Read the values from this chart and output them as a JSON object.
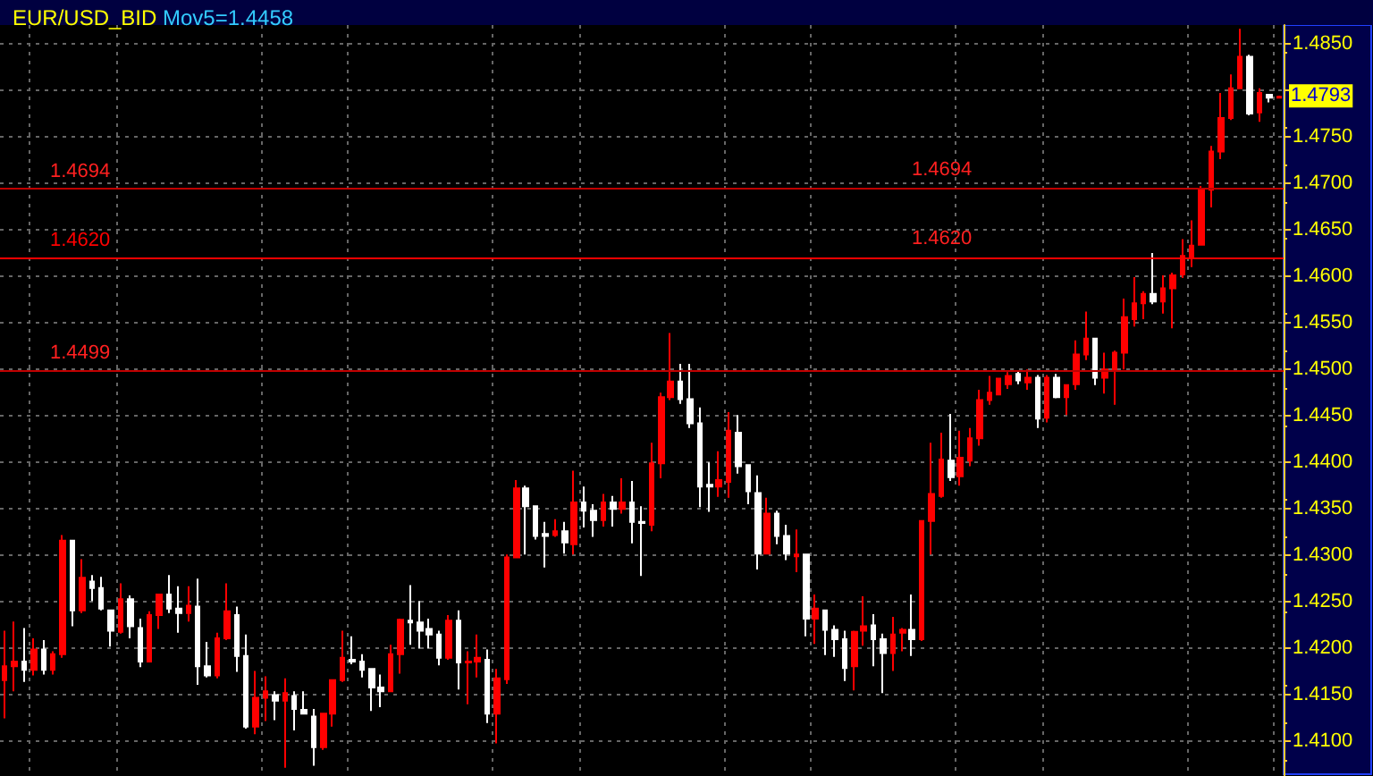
{
  "chart_data": {
    "type": "candlestick",
    "title": "EUR/USD_BID",
    "subtitle": "Mov5=1.4458",
    "categories": [
      null,
      null,
      null,
      null,
      null,
      null,
      null,
      null,
      null,
      null,
      null,
      null,
      null,
      null,
      null,
      null,
      null,
      null,
      null,
      null,
      null,
      null,
      null,
      null,
      null,
      null,
      null,
      null,
      null,
      null,
      null,
      null,
      null,
      null,
      null,
      null,
      null,
      null,
      null,
      null,
      null,
      null,
      null,
      null,
      null,
      null,
      null,
      null,
      null,
      null,
      null,
      null,
      null,
      null,
      null,
      null,
      null,
      null,
      null,
      null,
      null,
      null,
      null,
      null,
      null,
      null,
      null,
      null,
      null,
      null,
      null,
      null,
      null,
      null,
      null,
      null,
      null,
      null,
      null,
      null,
      null,
      null,
      null,
      null,
      null,
      null,
      null,
      null,
      null,
      null,
      null,
      null,
      null,
      null,
      null,
      null,
      null,
      null,
      null,
      null,
      null,
      null,
      null,
      null,
      null,
      null,
      null,
      null,
      null,
      null,
      null,
      null,
      null,
      null,
      null,
      null,
      null,
      null,
      null,
      null,
      null,
      null,
      null,
      null,
      null,
      null,
      null,
      null,
      null,
      null,
      null,
      null,
      null
    ],
    "ohlc": [
      [
        1.4166,
        1.4219,
        1.4125,
        1.4181
      ],
      [
        1.4181,
        1.4229,
        1.4154,
        1.4186
      ],
      [
        1.4186,
        1.4222,
        1.4164,
        1.4177
      ],
      [
        1.4177,
        1.4211,
        1.4171,
        1.4199
      ],
      [
        1.4199,
        1.4209,
        1.4172,
        1.4177
      ],
      [
        1.4177,
        1.4197,
        1.4172,
        1.4194
      ],
      [
        1.4194,
        1.4322,
        1.419,
        1.4316
      ],
      [
        1.4316,
        1.4316,
        1.4224,
        1.4241
      ],
      [
        1.4241,
        1.4296,
        1.4238,
        1.4276
      ],
      [
        1.4272,
        1.4279,
        1.4251,
        1.4265
      ],
      [
        1.4265,
        1.4277,
        1.4241,
        1.4243
      ],
      [
        1.4241,
        1.4241,
        1.4202,
        1.4219
      ],
      [
        1.4218,
        1.427,
        1.4216,
        1.4253
      ],
      [
        1.4253,
        1.4257,
        1.4211,
        1.4224
      ],
      [
        1.4222,
        1.4232,
        1.418,
        1.4186
      ],
      [
        1.4186,
        1.424,
        1.4185,
        1.4236
      ],
      [
        1.4236,
        1.4258,
        1.4221,
        1.4258
      ],
      [
        1.4258,
        1.4279,
        1.4238,
        1.4243
      ],
      [
        1.4243,
        1.4267,
        1.4217,
        1.4238
      ],
      [
        1.4238,
        1.4267,
        1.4229,
        1.4246
      ],
      [
        1.4245,
        1.4275,
        1.4161,
        1.4181
      ],
      [
        1.4181,
        1.4207,
        1.4169,
        1.4171
      ],
      [
        1.4171,
        1.4217,
        1.4168,
        1.4211
      ],
      [
        1.4211,
        1.427,
        1.4209,
        1.424
      ],
      [
        1.4236,
        1.4245,
        1.4175,
        1.4192
      ],
      [
        1.4192,
        1.4215,
        1.4114,
        1.4116
      ],
      [
        1.4116,
        1.4176,
        1.4108,
        1.4147
      ],
      [
        1.4147,
        1.417,
        1.4122,
        1.4154
      ],
      [
        1.415,
        1.4154,
        1.4123,
        1.4144
      ],
      [
        1.4144,
        1.4168,
        1.4072,
        1.4152
      ],
      [
        1.4149,
        1.4154,
        1.4112,
        1.4135
      ],
      [
        1.4134,
        1.4154,
        1.4129,
        1.413
      ],
      [
        1.4127,
        1.4135,
        1.4074,
        1.4094
      ],
      [
        1.4094,
        1.4131,
        1.4091,
        1.413
      ],
      [
        1.413,
        1.4167,
        1.4116,
        1.4166
      ],
      [
        1.4166,
        1.4219,
        1.4164,
        1.419
      ],
      [
        1.4188,
        1.4213,
        1.4183,
        1.4186
      ],
      [
        1.4186,
        1.4194,
        1.4169,
        1.4177
      ],
      [
        1.4178,
        1.4178,
        1.4133,
        1.4158
      ],
      [
        1.4158,
        1.4172,
        1.4137,
        1.4154
      ],
      [
        1.4154,
        1.4204,
        1.4153,
        1.4194
      ],
      [
        1.4194,
        1.4232,
        1.4173,
        1.4231
      ],
      [
        1.423,
        1.4268,
        1.4204,
        1.4228
      ],
      [
        1.4228,
        1.4251,
        1.42,
        1.4219
      ],
      [
        1.4221,
        1.4232,
        1.42,
        1.4215
      ],
      [
        1.4215,
        1.4219,
        1.4182,
        1.419
      ],
      [
        1.419,
        1.4236,
        1.4188,
        1.423
      ],
      [
        1.423,
        1.4241,
        1.4156,
        1.4185
      ],
      [
        1.4185,
        1.4197,
        1.414,
        1.4186
      ],
      [
        1.4186,
        1.4215,
        1.4169,
        1.419
      ],
      [
        1.4188,
        1.4199,
        1.412,
        1.413
      ],
      [
        1.413,
        1.4178,
        1.4098,
        1.4168
      ],
      [
        1.4167,
        1.4301,
        1.4162,
        1.4298
      ],
      [
        1.4298,
        1.4381,
        1.4298,
        1.4372
      ],
      [
        1.4372,
        1.4375,
        1.4301,
        1.4353
      ],
      [
        1.4353,
        1.4353,
        1.4317,
        1.4321
      ],
      [
        1.4323,
        1.4336,
        1.4287,
        1.4321
      ],
      [
        1.4322,
        1.4339,
        1.432,
        1.4326
      ],
      [
        1.4326,
        1.4336,
        1.4302,
        1.4314
      ],
      [
        1.4312,
        1.4391,
        1.4301,
        1.4357
      ],
      [
        1.4357,
        1.4374,
        1.433,
        1.4348
      ],
      [
        1.4348,
        1.4355,
        1.432,
        1.4338
      ],
      [
        1.4338,
        1.4366,
        1.4331,
        1.4357
      ],
      [
        1.4357,
        1.4364,
        1.4331,
        1.435
      ],
      [
        1.435,
        1.4383,
        1.4345,
        1.4357
      ],
      [
        1.4357,
        1.438,
        1.4313,
        1.4336
      ],
      [
        1.4336,
        1.4353,
        1.4278,
        1.4335
      ],
      [
        1.4333,
        1.4421,
        1.4326,
        1.4399
      ],
      [
        1.4399,
        1.4475,
        1.4383,
        1.447
      ],
      [
        1.447,
        1.4539,
        1.4467,
        1.4487
      ],
      [
        1.4487,
        1.4506,
        1.4463,
        1.4468
      ],
      [
        1.4468,
        1.4506,
        1.4437,
        1.4442
      ],
      [
        1.4442,
        1.4459,
        1.4352,
        1.4374
      ],
      [
        1.4376,
        1.44,
        1.4347,
        1.4374
      ],
      [
        1.4374,
        1.4412,
        1.4363,
        1.4381
      ],
      [
        1.4379,
        1.4454,
        1.4362,
        1.4434
      ],
      [
        1.4432,
        1.4451,
        1.4388,
        1.4396
      ],
      [
        1.4397,
        1.4397,
        1.4355,
        1.4369
      ],
      [
        1.4367,
        1.4386,
        1.4285,
        1.4302
      ],
      [
        1.4302,
        1.4362,
        1.4302,
        1.4345
      ],
      [
        1.4345,
        1.4348,
        1.4312,
        1.4321
      ],
      [
        1.4321,
        1.4333,
        1.4295,
        1.4302
      ],
      [
        1.4299,
        1.4328,
        1.4282,
        1.4301
      ],
      [
        1.4301,
        1.4301,
        1.4213,
        1.4232
      ],
      [
        1.4232,
        1.4258,
        1.4205,
        1.4243
      ],
      [
        1.4241,
        1.4242,
        1.4193,
        1.422
      ],
      [
        1.422,
        1.4225,
        1.4191,
        1.421
      ],
      [
        1.421,
        1.4219,
        1.4165,
        1.4179
      ],
      [
        1.4181,
        1.4219,
        1.4155,
        1.4218
      ],
      [
        1.4219,
        1.4256,
        1.4203,
        1.4224
      ],
      [
        1.4225,
        1.4237,
        1.4181,
        1.421
      ],
      [
        1.421,
        1.4216,
        1.4152,
        1.4195
      ],
      [
        1.4195,
        1.4234,
        1.4176,
        1.4215
      ],
      [
        1.4217,
        1.4222,
        1.4197,
        1.422
      ],
      [
        1.422,
        1.4258,
        1.4192,
        1.421
      ],
      [
        1.421,
        1.4337,
        1.4208,
        1.4337
      ],
      [
        1.4337,
        1.4421,
        1.4301,
        1.4366
      ],
      [
        1.4364,
        1.4432,
        1.4362,
        1.4403
      ],
      [
        1.4402,
        1.4452,
        1.438,
        1.4384
      ],
      [
        1.4385,
        1.4434,
        1.4375,
        1.4405
      ],
      [
        1.4402,
        1.4437,
        1.4396,
        1.4426
      ],
      [
        1.4426,
        1.4478,
        1.4418,
        1.4467
      ],
      [
        1.4467,
        1.4493,
        1.4462,
        1.4475
      ],
      [
        1.4473,
        1.4491,
        1.4472,
        1.449
      ],
      [
        1.4484,
        1.4497,
        1.4479,
        1.4493
      ],
      [
        1.4495,
        1.4499,
        1.4484,
        1.4488
      ],
      [
        1.4486,
        1.45,
        1.4478,
        1.4491
      ],
      [
        1.4491,
        1.4494,
        1.4437,
        1.4447
      ],
      [
        1.4448,
        1.4494,
        1.4443,
        1.4491
      ],
      [
        1.4491,
        1.4495,
        1.4469,
        1.447
      ],
      [
        1.447,
        1.4484,
        1.4451,
        1.4483
      ],
      [
        1.4484,
        1.4531,
        1.4478,
        1.4516
      ],
      [
        1.4516,
        1.4562,
        1.451,
        1.4533
      ],
      [
        1.4533,
        1.4533,
        1.4483,
        1.4491
      ],
      [
        1.4491,
        1.4518,
        1.4474,
        1.45
      ],
      [
        1.45,
        1.452,
        1.4462,
        1.4518
      ],
      [
        1.4518,
        1.4576,
        1.45,
        1.4556
      ],
      [
        1.4554,
        1.4599,
        1.4546,
        1.4571
      ],
      [
        1.4571,
        1.4584,
        1.4554,
        1.4581
      ],
      [
        1.4581,
        1.4625,
        1.457,
        1.4573
      ],
      [
        1.4573,
        1.4601,
        1.456,
        1.4587
      ],
      [
        1.4587,
        1.4604,
        1.4544,
        1.4601
      ],
      [
        1.4602,
        1.464,
        1.4598,
        1.4622
      ],
      [
        1.4621,
        1.466,
        1.461,
        1.4633
      ],
      [
        1.4634,
        1.4697,
        1.4633,
        1.4694
      ],
      [
        1.4693,
        1.474,
        1.4674,
        1.4734
      ],
      [
        1.4734,
        1.4797,
        1.4726,
        1.477
      ],
      [
        1.477,
        1.4817,
        1.4768,
        1.4802
      ],
      [
        1.4802,
        1.4866,
        1.4802,
        1.4836
      ],
      [
        1.4836,
        1.4838,
        1.4773,
        1.4775
      ],
      [
        1.4776,
        1.4802,
        1.4766,
        1.4797
      ],
      [
        1.4795,
        1.4795,
        1.4787,
        1.4792
      ],
      [
        1.4792,
        1.4794,
        1.4791,
        1.4793
      ]
    ],
    "colors": [
      "#ff0000",
      "#ff0000",
      "#ffffff",
      "#ff0000",
      "#ffffff",
      "#ff0000",
      "#ff0000",
      "#ffffff",
      "#ff0000",
      "#ffffff",
      "#ffffff",
      "#ffffff",
      "#ff0000",
      "#ffffff",
      "#ffffff",
      "#ff0000",
      "#ff0000",
      "#ffffff",
      "#ffffff",
      "#ff0000",
      "#ffffff",
      "#ffffff",
      "#ff0000",
      "#ff0000",
      "#ffffff",
      "#ffffff",
      "#ff0000",
      "#ff0000",
      "#ffffff",
      "#ff0000",
      "#ffffff",
      "#ffffff",
      "#ffffff",
      "#ff0000",
      "#ff0000",
      "#ff0000",
      "#ffffff",
      "#ffffff",
      "#ffffff",
      "#ffffff",
      "#ff0000",
      "#ff0000",
      "#ffffff",
      "#ffffff",
      "#ffffff",
      "#ffffff",
      "#ff0000",
      "#ffffff",
      "#ff0000",
      "#ff0000",
      "#ffffff",
      "#ff0000",
      "#ff0000",
      "#ff0000",
      "#ffffff",
      "#ffffff",
      "#ffffff",
      "#ff0000",
      "#ffffff",
      "#ff0000",
      "#ffffff",
      "#ffffff",
      "#ff0000",
      "#ffffff",
      "#ff0000",
      "#ffffff",
      "#ffffff",
      "#ff0000",
      "#ff0000",
      "#ff0000",
      "#ffffff",
      "#ffffff",
      "#ffffff",
      "#ffffff",
      "#ff0000",
      "#ff0000",
      "#ffffff",
      "#ffffff",
      "#ffffff",
      "#ff0000",
      "#ffffff",
      "#ffffff",
      "#ff0000",
      "#ffffff",
      "#ff0000",
      "#ffffff",
      "#ffffff",
      "#ffffff",
      "#ff0000",
      "#ff0000",
      "#ffffff",
      "#ffffff",
      "#ff0000",
      "#ff0000",
      "#ffffff",
      "#ff0000",
      "#ff0000",
      "#ff0000",
      "#ffffff",
      "#ff0000",
      "#ff0000",
      "#ff0000",
      "#ff0000",
      "#ff0000",
      "#ff0000",
      "#ffffff",
      "#ff0000",
      "#ffffff",
      "#ff0000",
      "#ffffff",
      "#ff0000",
      "#ff0000",
      "#ff0000",
      "#ffffff",
      "#ff0000",
      "#ff0000",
      "#ff0000",
      "#ff0000",
      "#ff0000",
      "#ffffff",
      "#ff0000",
      "#ff0000",
      "#ff0000",
      "#ff0000",
      "#ff0000",
      "#ff0000",
      "#ff0000",
      "#ff0000",
      "#ff0000",
      "#ffffff",
      "#ff0000",
      "#ffffff",
      "#ff0000"
    ],
    "ylim": [
      1.4063,
      1.487
    ],
    "yticks": [
      {
        "value": 1.41,
        "label": "1.4100"
      },
      {
        "value": 1.415,
        "label": "1.4150"
      },
      {
        "value": 1.42,
        "label": "1.4200"
      },
      {
        "value": 1.425,
        "label": "1.4250"
      },
      {
        "value": 1.43,
        "label": "1.4300"
      },
      {
        "value": 1.435,
        "label": "1.4350"
      },
      {
        "value": 1.44,
        "label": "1.4400"
      },
      {
        "value": 1.445,
        "label": "1.4450"
      },
      {
        "value": 1.45,
        "label": "1.4500"
      },
      {
        "value": 1.455,
        "label": "1.4550"
      },
      {
        "value": 1.46,
        "label": "1.4600"
      },
      {
        "value": 1.465,
        "label": "1.4650"
      },
      {
        "value": 1.47,
        "label": "1.4700"
      },
      {
        "value": 1.475,
        "label": "1.4750"
      },
      {
        "value": 1.48,
        "label": null
      },
      {
        "value": 1.485,
        "label": "1.4850"
      }
    ],
    "grid": true,
    "ref_lines": [
      {
        "axis": "y",
        "value": 1.4694,
        "label": "1.4694",
        "color": "#c00000"
      },
      {
        "axis": "y",
        "value": 1.462,
        "label": "1.4620",
        "color": "#ff0000"
      },
      {
        "axis": "y",
        "value": 1.4499,
        "label": "1.4499",
        "color": "#c00000"
      }
    ],
    "annotations": [
      "1.4694",
      "1.4620",
      {
        "text": "1.4793",
        "y": 1.4793
      }
    ]
  }
}
